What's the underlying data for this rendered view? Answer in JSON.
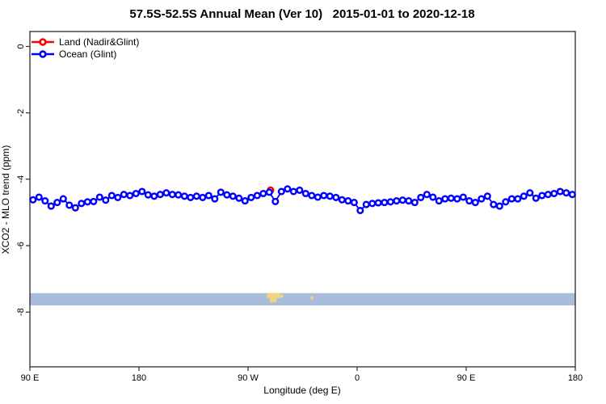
{
  "chart_data": {
    "type": "line",
    "title": "57.5S-52.5S Annual Mean (Ver 10)   2015-01-01 to 2020-12-18",
    "xlabel": "Longitude (deg E)",
    "ylabel": "XCO2 - MLO trend (ppm)",
    "xlim": [
      90,
      540
    ],
    "ylim": [
      -9.65,
      0.45
    ],
    "grid": "off",
    "frame_color": "#2b2b2b",
    "x_ticks": [
      {
        "value": 90,
        "label": "90 E"
      },
      {
        "value": 180,
        "label": "180"
      },
      {
        "value": 270,
        "label": "90 W"
      },
      {
        "value": 360,
        "label": "0"
      },
      {
        "value": 450,
        "label": "90 E"
      },
      {
        "value": 540,
        "label": "180"
      }
    ],
    "y_ticks": [
      {
        "value": 0,
        "label": "0"
      },
      {
        "value": -2,
        "label": "-2"
      },
      {
        "value": -4,
        "label": "-4"
      },
      {
        "value": -6,
        "label": "-6"
      },
      {
        "value": -8,
        "label": "-8"
      }
    ],
    "legend": {
      "position": "topleft",
      "items": [
        {
          "label": "Land (Nadir&Glint)",
          "color": "#ff0000"
        },
        {
          "label": "Ocean (Glint)",
          "color": "#0000ff"
        }
      ]
    },
    "series": [
      {
        "name": "Land (Nadir&Glint)",
        "color": "#ff0000",
        "marker": "open-circle",
        "x": [
          288.5
        ],
        "values": [
          -4.33
        ]
      },
      {
        "name": "Ocean (Glint)",
        "color": "#0000ff",
        "marker": "open-circle",
        "x_start": 92.5,
        "x_step": 5,
        "values": [
          -4.62,
          -4.54,
          -4.65,
          -4.81,
          -4.7,
          -4.59,
          -4.78,
          -4.86,
          -4.73,
          -4.68,
          -4.67,
          -4.54,
          -4.63,
          -4.49,
          -4.55,
          -4.46,
          -4.49,
          -4.43,
          -4.37,
          -4.47,
          -4.51,
          -4.46,
          -4.41,
          -4.46,
          -4.47,
          -4.51,
          -4.55,
          -4.51,
          -4.55,
          -4.49,
          -4.59,
          -4.39,
          -4.47,
          -4.51,
          -4.57,
          -4.65,
          -4.55,
          -4.49,
          -4.43,
          -4.39,
          -4.67,
          -4.37,
          -4.29,
          -4.37,
          -4.33,
          -4.43,
          -4.49,
          -4.54,
          -4.49,
          -4.51,
          -4.55,
          -4.62,
          -4.65,
          -4.7,
          -4.94,
          -4.76,
          -4.73,
          -4.71,
          -4.7,
          -4.68,
          -4.65,
          -4.63,
          -4.65,
          -4.7,
          -4.55,
          -4.46,
          -4.54,
          -4.65,
          -4.59,
          -4.57,
          -4.59,
          -4.54,
          -4.65,
          -4.7,
          -4.59,
          -4.51,
          -4.76,
          -4.81,
          -4.68,
          -4.59,
          -4.59,
          -4.51,
          -4.41,
          -4.57,
          -4.49,
          -4.46,
          -4.43,
          -4.37,
          -4.41,
          -4.46
        ]
      }
    ],
    "map_strip": {
      "description": "latitude-band coastline strip: ocean with land patches",
      "ppm_top": -7.43,
      "ppm_bottom": -7.8,
      "ocean_color": "#a9bcd9",
      "land_color": "#f0d582",
      "land_patches": [
        {
          "lon0": 285.5,
          "lon1": 296.5,
          "top": 0.0,
          "bottom": 0.4
        },
        {
          "lon0": 288.0,
          "lon1": 293.5,
          "top": 0.4,
          "bottom": 0.75
        },
        {
          "lon0": 296.5,
          "lon1": 299.0,
          "top": 0.1,
          "bottom": 0.35
        },
        {
          "lon0": 321.8,
          "lon1": 323.8,
          "top": 0.25,
          "bottom": 0.55
        }
      ]
    }
  }
}
